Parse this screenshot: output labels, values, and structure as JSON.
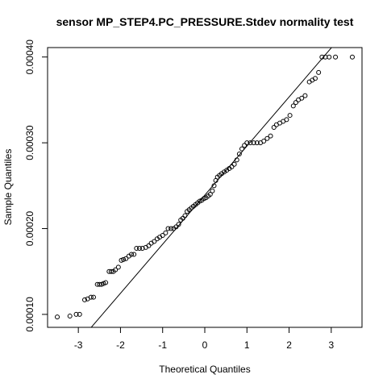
{
  "chart_data": {
    "type": "scatter",
    "title": "sensor MP_STEP4.PC_PRESSURE.Stdev normality test",
    "x_label": "Theoretical Quantiles",
    "y_label": "Sample Quantiles",
    "xlim": [
      -3.73,
      3.73
    ],
    "ylim": [
      8.49e-05,
      0.000411
    ],
    "xticks": [
      -3,
      -2,
      -1,
      0,
      1,
      2,
      3
    ],
    "yticks": [
      {
        "value": 0.0001,
        "label": "0.00010"
      },
      {
        "value": 0.0002,
        "label": "0.00020"
      },
      {
        "value": 0.0003,
        "label": "0.00030"
      },
      {
        "value": 0.0004,
        "label": "0.00040"
      }
    ],
    "color": "#000000",
    "reference_line": {
      "intercept": 0.000239,
      "slope": 5.72e-05
    },
    "x": [
      -3.5,
      -3.2,
      -3.05,
      -2.97,
      -2.85,
      -2.78,
      -2.7,
      -2.64,
      -2.55,
      -2.5,
      -2.45,
      -2.4,
      -2.35,
      -2.27,
      -2.22,
      -2.17,
      -2.12,
      -2.05,
      -1.98,
      -1.93,
      -1.87,
      -1.8,
      -1.74,
      -1.68,
      -1.62,
      -1.55,
      -1.48,
      -1.4,
      -1.33,
      -1.27,
      -1.2,
      -1.13,
      -1.07,
      -1,
      -0.93,
      -0.87,
      -0.8,
      -0.74,
      -0.68,
      -0.62,
      -0.57,
      -0.52,
      -0.47,
      -0.42,
      -0.37,
      -0.32,
      -0.27,
      -0.22,
      -0.17,
      -0.12,
      -0.07,
      -0.02,
      0.03,
      0.08,
      0.13,
      0.18,
      0.22,
      0.26,
      0.3,
      0.35,
      0.4,
      0.46,
      0.52,
      0.58,
      0.64,
      0.7,
      0.76,
      0.82,
      0.88,
      0.94,
      1,
      1.08,
      1.16,
      1.24,
      1.32,
      1.4,
      1.48,
      1.56,
      1.64,
      1.7,
      1.78,
      1.86,
      1.94,
      2.02,
      2.1,
      2.16,
      2.22,
      2.3,
      2.38,
      2.48,
      2.55,
      2.62,
      2.7,
      2.78,
      2.86,
      2.95,
      3.1,
      3.5
    ],
    "values": [
      9.7e-05,
      9.8e-05,
      0.0001,
      0.0001,
      0.000117,
      0.000118,
      0.00012,
      0.00012,
      0.000135,
      0.000135,
      0.000135,
      0.000136,
      0.000137,
      0.00015,
      0.00015,
      0.00015,
      0.000152,
      0.000155,
      0.000163,
      0.000164,
      0.000165,
      0.000168,
      0.00017,
      0.00017,
      0.000177,
      0.000177,
      0.000177,
      0.000178,
      0.00018,
      0.000183,
      0.000185,
      0.000188,
      0.00019,
      0.000192,
      0.000195,
      0.0002,
      0.0002,
      0.0002,
      0.000202,
      0.000205,
      0.00021,
      0.000212,
      0.000215,
      0.00022,
      0.000222,
      0.000224,
      0.000226,
      0.000228,
      0.00023,
      0.000232,
      0.000233,
      0.000235,
      0.000236,
      0.000238,
      0.00024,
      0.000244,
      0.00025,
      0.000256,
      0.00026,
      0.000262,
      0.000264,
      0.000266,
      0.000268,
      0.00027,
      0.000272,
      0.000275,
      0.00028,
      0.000287,
      0.000293,
      0.000297,
      0.0003,
      0.0003,
      0.0003,
      0.0003,
      0.0003,
      0.000302,
      0.000305,
      0.000308,
      0.000318,
      0.000321,
      0.000323,
      0.000325,
      0.000327,
      0.000332,
      0.000343,
      0.000347,
      0.00035,
      0.000352,
      0.000355,
      0.000371,
      0.000373,
      0.000375,
      0.000382,
      0.0004,
      0.0004,
      0.0004,
      0.0004,
      0.0004
    ]
  }
}
